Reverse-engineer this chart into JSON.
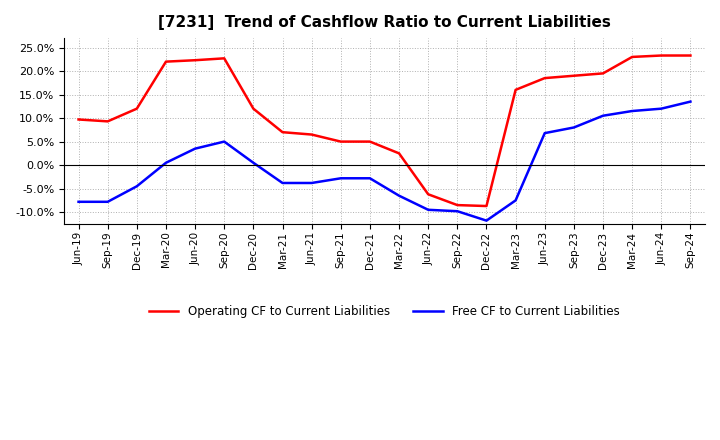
{
  "title": "[7231]  Trend of Cashflow Ratio to Current Liabilities",
  "x_labels": [
    "Jun-19",
    "Sep-19",
    "Dec-19",
    "Mar-20",
    "Jun-20",
    "Sep-20",
    "Dec-20",
    "Mar-21",
    "Jun-21",
    "Sep-21",
    "Dec-21",
    "Mar-22",
    "Jun-22",
    "Sep-22",
    "Dec-22",
    "Mar-23",
    "Jun-23",
    "Sep-23",
    "Dec-23",
    "Mar-24",
    "Jun-24",
    "Sep-24"
  ],
  "operating_cf": [
    9.7,
    9.3,
    12.0,
    22.0,
    22.3,
    22.7,
    12.0,
    7.0,
    6.5,
    5.0,
    5.0,
    2.5,
    -6.2,
    -8.5,
    -8.7,
    16.0,
    18.5,
    19.0,
    19.5,
    23.0,
    23.3,
    23.3
  ],
  "free_cf": [
    -7.8,
    -7.8,
    -4.5,
    0.5,
    3.5,
    5.0,
    0.5,
    -3.8,
    -3.8,
    -2.8,
    -2.8,
    -6.5,
    -9.5,
    -9.8,
    -11.8,
    -7.5,
    6.8,
    8.0,
    10.5,
    11.5,
    12.0,
    13.5
  ],
  "operating_cf_color": "#ff0000",
  "free_cf_color": "#0000ff",
  "ylim": [
    -12.5,
    27.0
  ],
  "yticks": [
    -10.0,
    -5.0,
    0.0,
    5.0,
    10.0,
    15.0,
    20.0,
    25.0
  ],
  "background_color": "#ffffff",
  "grid_color": "#b0b0b0",
  "legend_labels": [
    "Operating CF to Current Liabilities",
    "Free CF to Current Liabilities"
  ]
}
